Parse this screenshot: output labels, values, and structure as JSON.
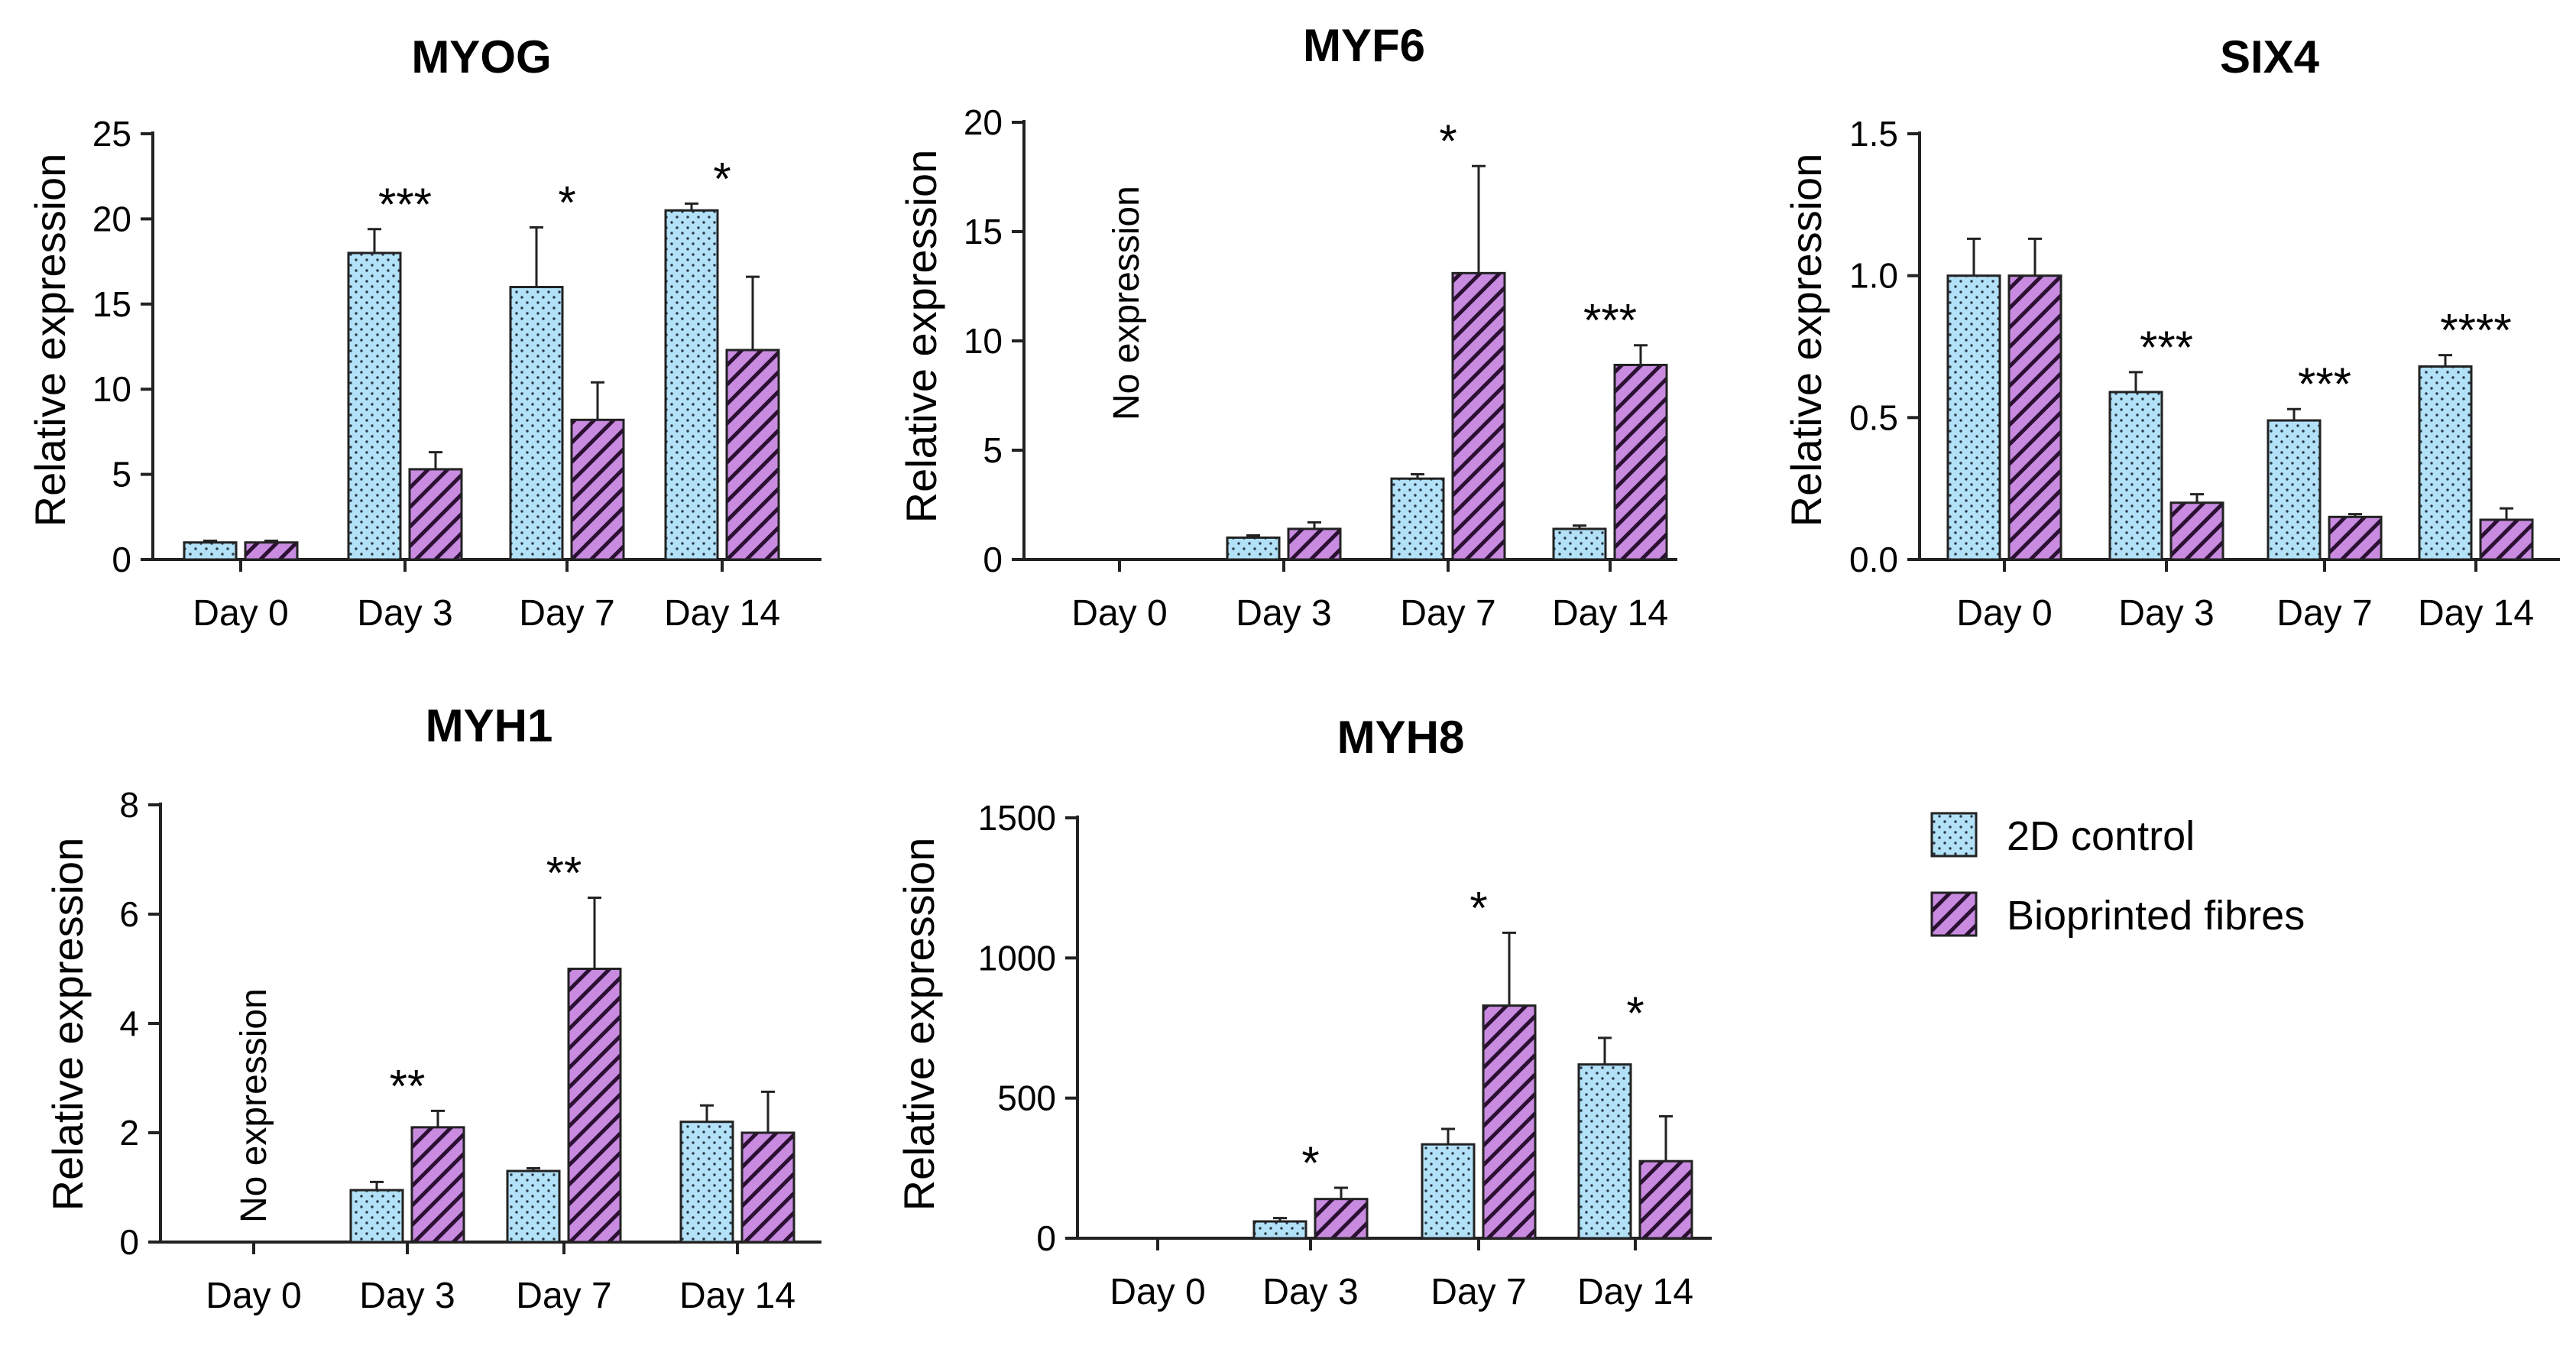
{
  "legend": {
    "items": [
      {
        "name": "2D control",
        "color": "#b3e1f7",
        "pattern": "dots"
      },
      {
        "name": "Bioprinted fibres",
        "color": "#c88be0",
        "pattern": "hatch"
      }
    ]
  },
  "chart_data": [
    {
      "type": "bar",
      "title": "MYOG",
      "ylabel": "Relative expression",
      "xlabel": "",
      "categories": [
        "Day 0",
        "Day 3",
        "Day 7",
        "Day 14"
      ],
      "ylim": [
        0,
        25
      ],
      "yticks": [
        0,
        5,
        10,
        15,
        20,
        25
      ],
      "ytick_labels": [
        "0",
        "5",
        "10",
        "15",
        "20",
        "25"
      ],
      "series": [
        {
          "name": "2D control",
          "values": [
            1.0,
            18.0,
            16.0,
            20.5
          ],
          "errors": [
            0.1,
            1.4,
            3.5,
            0.4
          ]
        },
        {
          "name": "Bioprinted fibres",
          "values": [
            1.0,
            5.3,
            8.2,
            12.3
          ],
          "errors": [
            0.1,
            1.0,
            2.2,
            4.3
          ]
        }
      ],
      "significance": [
        "",
        "***",
        "*",
        "*"
      ],
      "note": ""
    },
    {
      "type": "bar",
      "title": "MYF6",
      "ylabel": "Relative expression",
      "xlabel": "",
      "categories": [
        "Day 0",
        "Day 3",
        "Day 7",
        "Day 14"
      ],
      "ylim": [
        0,
        20
      ],
      "yticks": [
        0,
        5,
        10,
        15,
        20
      ],
      "ytick_labels": [
        "0",
        "5",
        "10",
        "15",
        "20"
      ],
      "series": [
        {
          "name": "2D control",
          "values": [
            null,
            1.0,
            3.7,
            1.4
          ],
          "errors": [
            null,
            0.1,
            0.2,
            0.15
          ]
        },
        {
          "name": "Bioprinted fibres",
          "values": [
            null,
            1.4,
            13.1,
            8.9
          ],
          "errors": [
            null,
            0.3,
            4.9,
            0.9
          ]
        }
      ],
      "significance": [
        "",
        "",
        "*",
        "***"
      ],
      "note": "No expression"
    },
    {
      "type": "bar",
      "title": "SIX4",
      "ylabel": "Relative expression",
      "xlabel": "",
      "categories": [
        "Day 0",
        "Day 3",
        "Day 7",
        "Day 14"
      ],
      "ylim": [
        0,
        1.5
      ],
      "yticks": [
        0,
        0.5,
        1.0,
        1.5
      ],
      "ytick_labels": [
        "0.0",
        "0.5",
        "1.0",
        "1.5"
      ],
      "series": [
        {
          "name": "2D control",
          "values": [
            1.0,
            0.59,
            0.49,
            0.68
          ],
          "errors": [
            0.13,
            0.07,
            0.04,
            0.04
          ]
        },
        {
          "name": "Bioprinted fibres",
          "values": [
            1.0,
            0.2,
            0.15,
            0.14
          ],
          "errors": [
            0.13,
            0.03,
            0.01,
            0.04
          ]
        }
      ],
      "significance": [
        "",
        "***",
        "***",
        "****"
      ],
      "note": ""
    },
    {
      "type": "bar",
      "title": "MYH1",
      "ylabel": "Relative expression",
      "xlabel": "",
      "categories": [
        "Day 0",
        "Day 3",
        "Day 7",
        "Day 14"
      ],
      "ylim": [
        0,
        8
      ],
      "yticks": [
        0,
        2,
        4,
        6,
        8
      ],
      "ytick_labels": [
        "0",
        "2",
        "4",
        "6",
        "8"
      ],
      "series": [
        {
          "name": "2D control",
          "values": [
            null,
            0.95,
            1.3,
            2.2
          ],
          "errors": [
            null,
            0.15,
            0.05,
            0.3
          ]
        },
        {
          "name": "Bioprinted fibres",
          "values": [
            null,
            2.1,
            5.0,
            2.0
          ],
          "errors": [
            null,
            0.3,
            1.3,
            0.75
          ]
        }
      ],
      "significance": [
        "",
        "**",
        "**",
        ""
      ],
      "note": "No expression"
    },
    {
      "type": "bar",
      "title": "MYH8",
      "ylabel": "Relative expression",
      "xlabel": "",
      "categories": [
        "Day 0",
        "Day 3",
        "Day 7",
        "Day 14"
      ],
      "ylim": [
        0,
        1500
      ],
      "yticks": [
        0,
        500,
        1000,
        1500
      ],
      "ytick_labels": [
        "0",
        "500",
        "1000",
        "1500"
      ],
      "series": [
        {
          "name": "2D control",
          "values": [
            0,
            60,
            335,
            620
          ],
          "errors": [
            0,
            12,
            55,
            95
          ]
        },
        {
          "name": "Bioprinted fibres",
          "values": [
            0,
            140,
            830,
            275
          ],
          "errors": [
            0,
            40,
            260,
            160
          ]
        }
      ],
      "significance": [
        "",
        "*",
        "*",
        "*"
      ],
      "note": ""
    }
  ]
}
